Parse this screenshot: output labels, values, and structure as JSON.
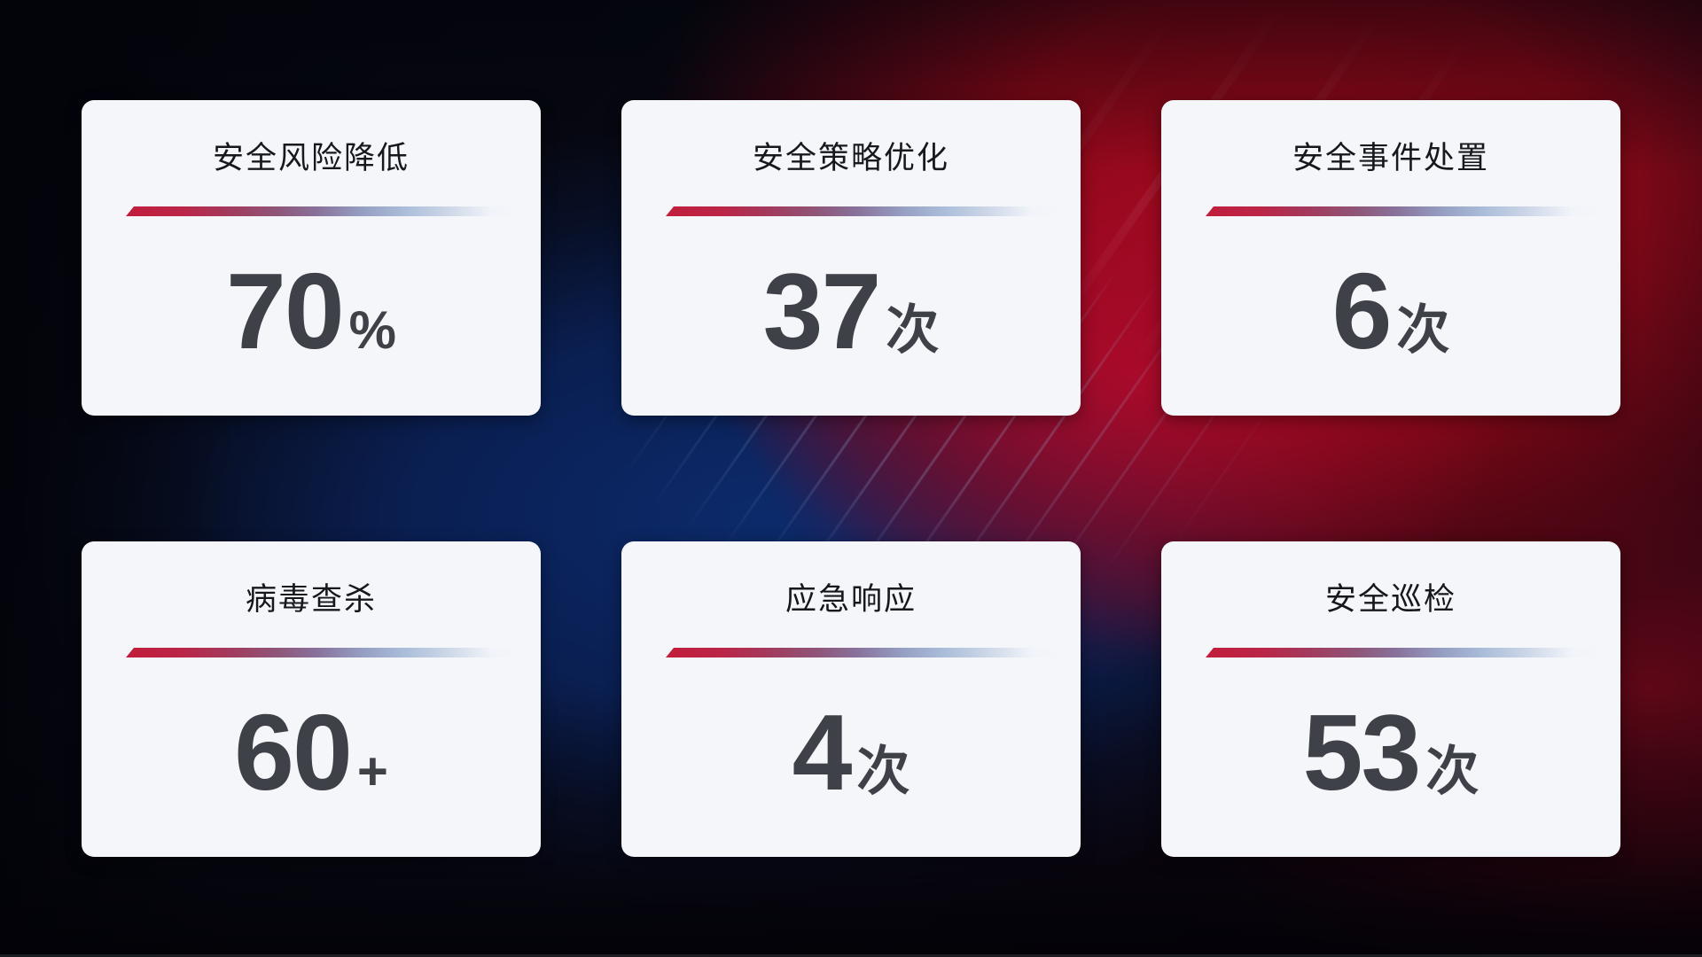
{
  "cards": [
    {
      "title": "安全风险降低",
      "value": "70",
      "unit": "%"
    },
    {
      "title": "安全策略优化",
      "value": "37",
      "unit": "次"
    },
    {
      "title": "安全事件处置",
      "value": "6",
      "unit": "次"
    },
    {
      "title": "病毒查杀",
      "value": "60",
      "unit": "+"
    },
    {
      "title": "应急响应",
      "value": "4",
      "unit": "次"
    },
    {
      "title": "安全巡检",
      "value": "53",
      "unit": "次"
    }
  ],
  "colors": {
    "card_background": "#f5f6fa",
    "title_text": "#17181c",
    "metric_text": "#3e4148",
    "divider_red": "#c11d3b",
    "divider_blue": "#aabdd9",
    "background_red": "#a00a1c",
    "background_blue": "#0c2a6a",
    "background_dark": "#06070f"
  }
}
